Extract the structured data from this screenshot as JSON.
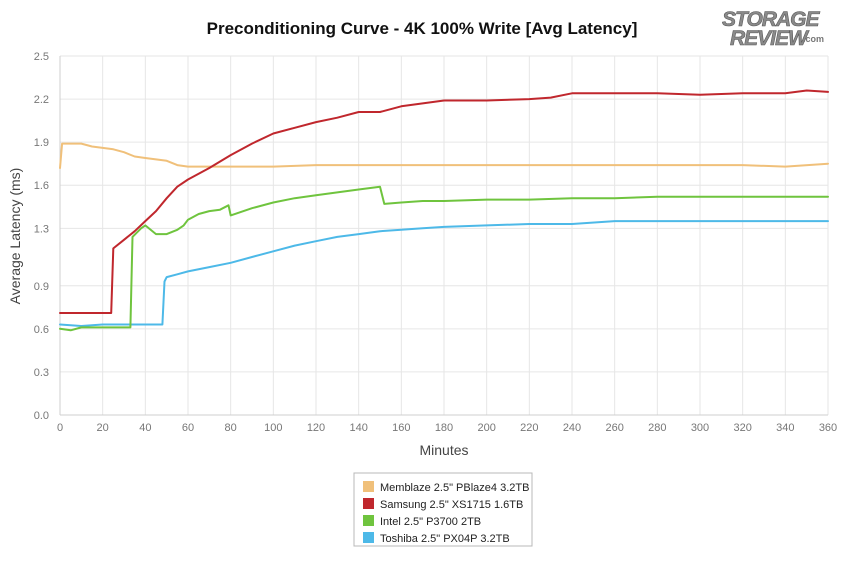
{
  "chart_data": {
    "type": "line",
    "title": "Preconditioning Curve - 4K 100% Write [Avg Latency]",
    "xlabel": "Minutes",
    "ylabel": "Average Latency (ms)",
    "xlim": [
      0,
      360
    ],
    "ylim": [
      0,
      2.5
    ],
    "x_ticks": [
      0,
      20,
      40,
      60,
      80,
      100,
      120,
      140,
      160,
      180,
      200,
      220,
      240,
      260,
      280,
      300,
      320,
      340,
      360
    ],
    "y_ticks": [
      0.0,
      0.3,
      0.6,
      0.9,
      1.3,
      1.6,
      1.9,
      2.2,
      2.5
    ],
    "y_tick_labels": [
      "0.0",
      "0.3",
      "0.6",
      "0.9",
      "1.3",
      "1.6",
      "1.9",
      "2.2",
      "2.5"
    ],
    "grid": true,
    "legend_position": "bottom-center",
    "series": [
      {
        "name": "Memblaze 2.5\" PBlaze4 3.2TB",
        "color": "#f0c07a",
        "x": [
          0,
          1,
          5,
          10,
          15,
          20,
          25,
          30,
          35,
          40,
          45,
          50,
          55,
          60,
          80,
          100,
          120,
          140,
          160,
          180,
          200,
          220,
          240,
          260,
          280,
          300,
          320,
          340,
          360
        ],
        "y": [
          1.72,
          1.89,
          1.89,
          1.89,
          1.87,
          1.86,
          1.85,
          1.83,
          1.8,
          1.79,
          1.78,
          1.77,
          1.74,
          1.73,
          1.73,
          1.73,
          1.74,
          1.74,
          1.74,
          1.74,
          1.74,
          1.74,
          1.74,
          1.74,
          1.74,
          1.74,
          1.74,
          1.73,
          1.75
        ]
      },
      {
        "name": "Samsung 2.5\" XS1715 1.6TB",
        "color": "#c0272d",
        "x": [
          0,
          10,
          24,
          25,
          30,
          35,
          40,
          45,
          50,
          55,
          60,
          70,
          80,
          90,
          100,
          110,
          120,
          130,
          140,
          150,
          160,
          170,
          180,
          200,
          220,
          230,
          240,
          250,
          260,
          280,
          300,
          320,
          340,
          350,
          360
        ],
        "y": [
          0.71,
          0.71,
          0.71,
          1.16,
          1.22,
          1.28,
          1.35,
          1.42,
          1.51,
          1.59,
          1.64,
          1.72,
          1.81,
          1.89,
          1.96,
          2.0,
          2.04,
          2.07,
          2.11,
          2.11,
          2.15,
          2.17,
          2.19,
          2.19,
          2.2,
          2.21,
          2.24,
          2.24,
          2.24,
          2.24,
          2.23,
          2.24,
          2.24,
          2.26,
          2.25
        ]
      },
      {
        "name": "Intel 2.5\" P3700 2TB",
        "color": "#6fc43e",
        "x": [
          0,
          5,
          10,
          20,
          33,
          34,
          38,
          40,
          45,
          50,
          55,
          58,
          60,
          65,
          70,
          75,
          79,
          80,
          90,
          100,
          110,
          120,
          130,
          140,
          150,
          152,
          160,
          170,
          180,
          200,
          220,
          240,
          260,
          280,
          300,
          320,
          340,
          360
        ],
        "y": [
          0.6,
          0.59,
          0.61,
          0.61,
          0.61,
          1.24,
          1.3,
          1.32,
          1.26,
          1.26,
          1.29,
          1.32,
          1.36,
          1.4,
          1.42,
          1.43,
          1.46,
          1.39,
          1.44,
          1.48,
          1.51,
          1.53,
          1.55,
          1.57,
          1.59,
          1.47,
          1.48,
          1.49,
          1.49,
          1.5,
          1.5,
          1.51,
          1.51,
          1.52,
          1.52,
          1.52,
          1.52,
          1.52
        ]
      },
      {
        "name": "Toshiba 2.5\" PX04P 3.2TB",
        "color": "#4db9e8",
        "x": [
          0,
          10,
          20,
          30,
          40,
          48,
          49,
          50,
          55,
          60,
          70,
          80,
          90,
          100,
          110,
          120,
          130,
          140,
          150,
          160,
          170,
          180,
          200,
          220,
          240,
          260,
          280,
          300,
          320,
          340,
          360
        ],
        "y": [
          0.63,
          0.62,
          0.63,
          0.63,
          0.63,
          0.63,
          0.93,
          0.96,
          0.98,
          1.0,
          1.03,
          1.06,
          1.1,
          1.14,
          1.18,
          1.21,
          1.24,
          1.26,
          1.28,
          1.29,
          1.3,
          1.31,
          1.32,
          1.33,
          1.33,
          1.35,
          1.35,
          1.35,
          1.35,
          1.35,
          1.35
        ]
      }
    ]
  },
  "logo": {
    "line1": "STORAGE",
    "line2": "REVIEW",
    "suffix": ".com"
  }
}
